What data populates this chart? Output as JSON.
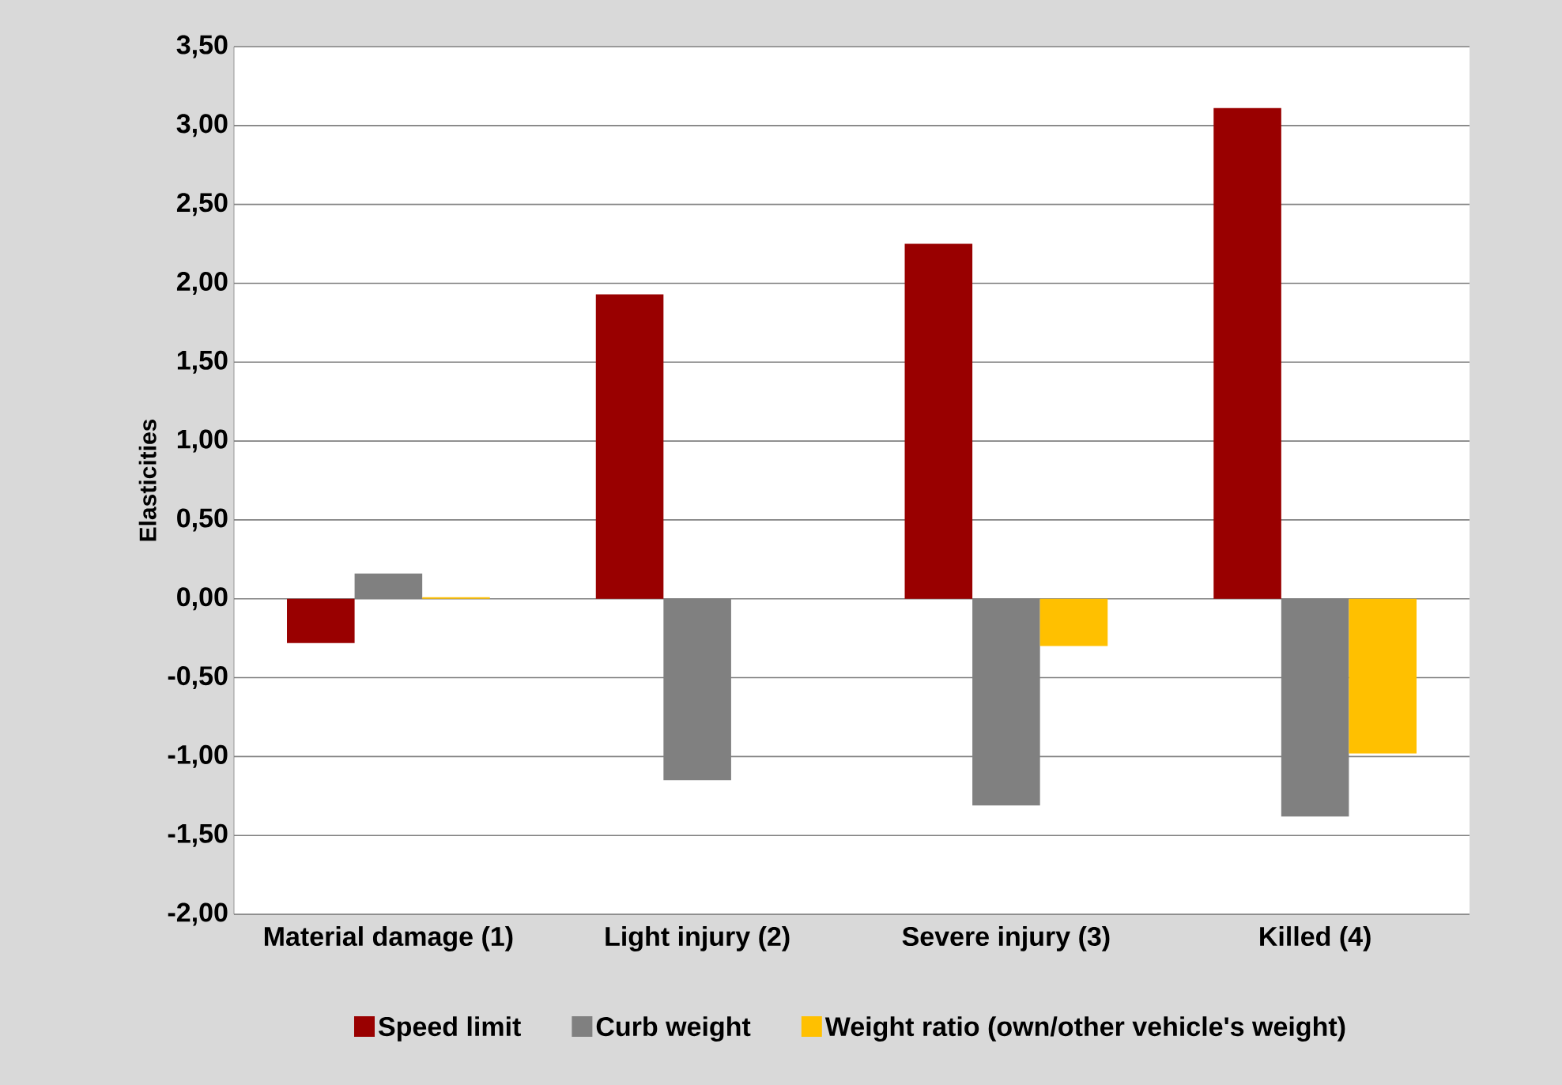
{
  "chart_data": {
    "type": "bar",
    "ylabel": "Elasticities",
    "categories": [
      "Material damage  (1)",
      "Light injury (2)",
      "Severe injury (3)",
      "Killed (4)"
    ],
    "series": [
      {
        "name": "Speed limit",
        "color": "#990000",
        "values": [
          -0.28,
          1.93,
          2.25,
          3.11
        ]
      },
      {
        "name": "Curb weight",
        "color": "#808080",
        "values": [
          0.16,
          -1.15,
          -1.31,
          -1.38
        ]
      },
      {
        "name": "Weight ratio (own/other vehicle's weight)",
        "color": "#ffc000",
        "values": [
          0.01,
          null,
          -0.3,
          -0.98
        ]
      }
    ],
    "ylim": [
      -2.0,
      3.5
    ],
    "yticks": [
      {
        "value": -2.0,
        "label": "-2,00"
      },
      {
        "value": -1.5,
        "label": "-1,50"
      },
      {
        "value": -1.0,
        "label": "-1,00"
      },
      {
        "value": -0.5,
        "label": "-0,50"
      },
      {
        "value": 0.0,
        "label": "0,00"
      },
      {
        "value": 0.5,
        "label": "0,50"
      },
      {
        "value": 1.0,
        "label": "1,00"
      },
      {
        "value": 1.5,
        "label": "1,50"
      },
      {
        "value": 2.0,
        "label": "2,00"
      },
      {
        "value": 2.5,
        "label": "2,50"
      },
      {
        "value": 3.0,
        "label": "3,00"
      },
      {
        "value": 3.5,
        "label": "3,50"
      }
    ],
    "grid": "y",
    "legend": "bottom"
  }
}
